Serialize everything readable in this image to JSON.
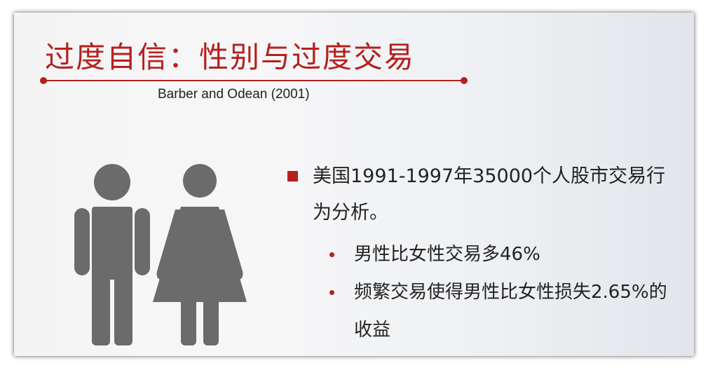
{
  "slide": {
    "title": "过度自信：性别与过度交易",
    "subtitle": "Barber and Odean (2001)",
    "bullets": [
      {
        "text": "美国1991-1997年35000个人股市交易行为分析。",
        "sub": [
          "男性比女性交易多46%",
          "频繁交易使得男性比女性损失2.65%的收益"
        ]
      }
    ],
    "icons": [
      "male-figure-icon",
      "female-figure-icon"
    ],
    "colors": {
      "accent": "#b5201f",
      "figure": "#6b6b6b",
      "text": "#222222"
    }
  }
}
